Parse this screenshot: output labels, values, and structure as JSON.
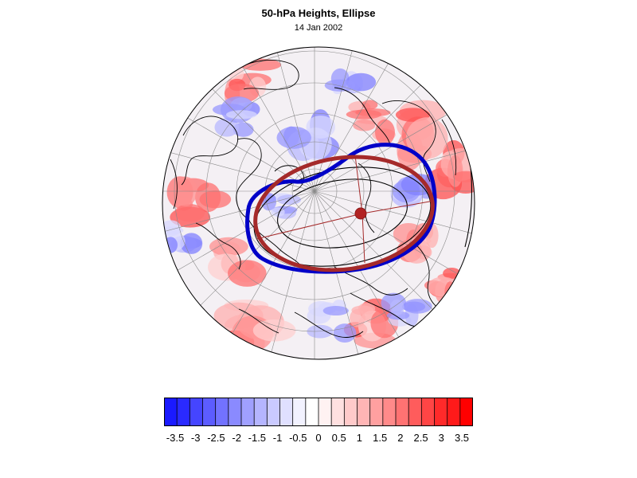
{
  "title": "50-hPa Heights, Ellipse",
  "subtitle": "14 Jan 2002",
  "colors": {
    "blue_ellipse": "#0000c8",
    "red_ellipse": "#a52a2a",
    "center_marker": "#b22222",
    "coastline": "#000000",
    "graticule": "#8a8a8a"
  },
  "colorbar": {
    "colors": [
      "#1a1aff",
      "#2a2aff",
      "#4545ff",
      "#5c5cff",
      "#7272ff",
      "#8a8aff",
      "#a0a0ff",
      "#b5b5ff",
      "#cacaff",
      "#e0e0ff",
      "#f2f2ff",
      "#ffffff",
      "#fff2f2",
      "#ffe0e0",
      "#ffcaca",
      "#ffb5b5",
      "#ffa0a0",
      "#ff8a8a",
      "#ff7272",
      "#ff5c5c",
      "#ff4545",
      "#ff2a2a",
      "#ff1a1a",
      "#ff0000"
    ],
    "labels": [
      "-3.5",
      "-3",
      "-2.5",
      "-2",
      "-1.5",
      "-1",
      "-0.5",
      "0",
      "0.5",
      "1",
      "1.5",
      "2",
      "2.5",
      "3",
      "3.5"
    ]
  }
}
